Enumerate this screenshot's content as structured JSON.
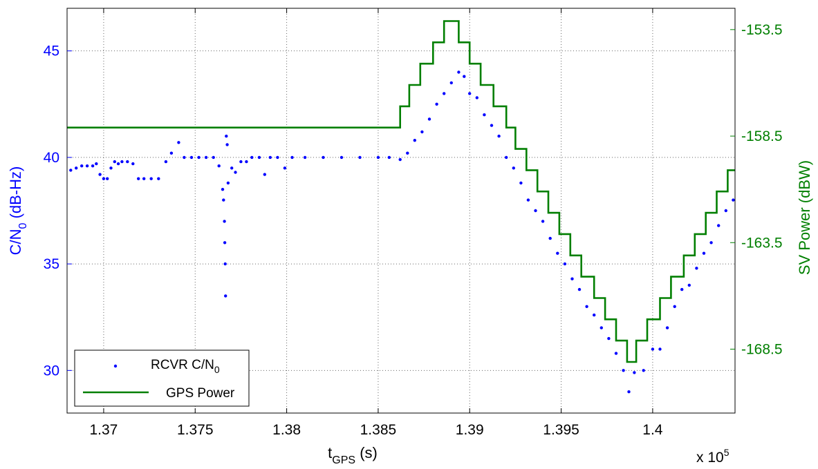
{
  "chart_data": {
    "type": "scatter",
    "xlabel": {
      "main": "t",
      "sub": "GPS",
      "rest": " (s)"
    },
    "x_multiplier": {
      "base": "x 10",
      "exp": "5"
    },
    "ylabel_left": {
      "main": "C/N",
      "sub": "0",
      "rest": " (dB-Hz)"
    },
    "ylabel_right": "SV Power (dBW)",
    "xlim": [
      136800,
      140450
    ],
    "ylim_left": [
      28,
      47
    ],
    "ylim_right": [
      -171.5,
      -152.5
    ],
    "x_ticks": [
      {
        "v": 137000,
        "label": "1.37"
      },
      {
        "v": 137500,
        "label": "1.375"
      },
      {
        "v": 138000,
        "label": "1.38"
      },
      {
        "v": 138500,
        "label": "1.385"
      },
      {
        "v": 139000,
        "label": "1.39"
      },
      {
        "v": 139500,
        "label": "1.395"
      },
      {
        "v": 140000,
        "label": "1.4"
      }
    ],
    "y_ticks_left": [
      {
        "v": 30,
        "label": "30"
      },
      {
        "v": 35,
        "label": "35"
      },
      {
        "v": 40,
        "label": "40"
      },
      {
        "v": 45,
        "label": "45"
      }
    ],
    "y_ticks_right": [
      {
        "v": -168.5,
        "label": "-168.5"
      },
      {
        "v": -163.5,
        "label": "-163.5"
      },
      {
        "v": -158.5,
        "label": "-158.5"
      },
      {
        "v": -153.5,
        "label": "-153.5"
      }
    ],
    "grid": true,
    "legend": {
      "placement": "bottom-left",
      "entries": [
        {
          "name": "RCVR C/N",
          "sub": "0",
          "marker": "dot",
          "color": "#0000ff"
        },
        {
          "name": "GPS Power",
          "sub": "",
          "marker": "line",
          "color": "#007f00"
        }
      ]
    },
    "colors": {
      "left_axis": "#0000ff",
      "right_axis": "#007f00",
      "frame": "#000000",
      "grid": "#000000"
    },
    "series": [
      {
        "name": "RCVR C/N0",
        "axis": "left",
        "style": "dots",
        "color": "#0000ff",
        "points": [
          [
            136820,
            39.4
          ],
          [
            136850,
            39.5
          ],
          [
            136880,
            39.6
          ],
          [
            136910,
            39.6
          ],
          [
            136940,
            39.6
          ],
          [
            136960,
            39.7
          ],
          [
            136980,
            39.2
          ],
          [
            137000,
            39.0
          ],
          [
            137020,
            39.0
          ],
          [
            137040,
            39.5
          ],
          [
            137060,
            39.8
          ],
          [
            137080,
            39.7
          ],
          [
            137100,
            39.8
          ],
          [
            137130,
            39.8
          ],
          [
            137160,
            39.7
          ],
          [
            137190,
            39.0
          ],
          [
            137220,
            39.0
          ],
          [
            137260,
            39.0
          ],
          [
            137300,
            39.0
          ],
          [
            137340,
            39.8
          ],
          [
            137370,
            40.2
          ],
          [
            137410,
            40.7
          ],
          [
            137440,
            40.0
          ],
          [
            137480,
            40.0
          ],
          [
            137520,
            40.0
          ],
          [
            137560,
            40.0
          ],
          [
            137600,
            40.0
          ],
          [
            137630,
            39.6
          ],
          [
            137650,
            38.5
          ],
          [
            137655,
            38.0
          ],
          [
            137660,
            37.0
          ],
          [
            137662,
            36.0
          ],
          [
            137664,
            35.0
          ],
          [
            137666,
            33.5
          ],
          [
            137670,
            41.0
          ],
          [
            137675,
            40.6
          ],
          [
            137680,
            38.8
          ],
          [
            137700,
            39.5
          ],
          [
            137720,
            39.3
          ],
          [
            137750,
            39.8
          ],
          [
            137780,
            39.8
          ],
          [
            137810,
            40.0
          ],
          [
            137850,
            40.0
          ],
          [
            137880,
            39.2
          ],
          [
            137910,
            40.0
          ],
          [
            137950,
            40.0
          ],
          [
            137990,
            39.5
          ],
          [
            138030,
            40.0
          ],
          [
            138100,
            40.0
          ],
          [
            138200,
            40.0
          ],
          [
            138300,
            40.0
          ],
          [
            138400,
            40.0
          ],
          [
            138500,
            40.0
          ],
          [
            138560,
            40.0
          ],
          [
            138620,
            39.9
          ],
          [
            138660,
            40.2
          ],
          [
            138700,
            40.8
          ],
          [
            138740,
            41.2
          ],
          [
            138780,
            41.8
          ],
          [
            138820,
            42.5
          ],
          [
            138860,
            43.0
          ],
          [
            138900,
            43.5
          ],
          [
            138940,
            44.0
          ],
          [
            138970,
            43.8
          ],
          [
            139000,
            43.0
          ],
          [
            139040,
            42.8
          ],
          [
            139080,
            42.0
          ],
          [
            139120,
            41.5
          ],
          [
            139160,
            41.0
          ],
          [
            139200,
            40.0
          ],
          [
            139240,
            39.5
          ],
          [
            139280,
            38.8
          ],
          [
            139320,
            38.0
          ],
          [
            139360,
            37.5
          ],
          [
            139400,
            37.0
          ],
          [
            139440,
            36.2
          ],
          [
            139480,
            35.5
          ],
          [
            139520,
            35.0
          ],
          [
            139560,
            34.3
          ],
          [
            139600,
            33.8
          ],
          [
            139640,
            33.0
          ],
          [
            139680,
            32.6
          ],
          [
            139720,
            32.0
          ],
          [
            139760,
            31.5
          ],
          [
            139800,
            30.8
          ],
          [
            139840,
            30.0
          ],
          [
            139870,
            29.0
          ],
          [
            139900,
            29.9
          ],
          [
            139950,
            30.0
          ],
          [
            140000,
            31.0
          ],
          [
            140040,
            31.0
          ],
          [
            140080,
            32.0
          ],
          [
            140120,
            33.0
          ],
          [
            140160,
            33.8
          ],
          [
            140200,
            34.0
          ],
          [
            140240,
            34.8
          ],
          [
            140280,
            35.5
          ],
          [
            140320,
            36.0
          ],
          [
            140360,
            36.8
          ],
          [
            140400,
            37.5
          ],
          [
            140440,
            38.0
          ]
        ]
      },
      {
        "name": "GPS Power",
        "axis": "right",
        "style": "step",
        "color": "#007f00",
        "points": [
          [
            136800,
            -158.1
          ],
          [
            138620,
            -158.1
          ],
          [
            138620,
            -157.1
          ],
          [
            138670,
            -157.1
          ],
          [
            138670,
            -156.1
          ],
          [
            138730,
            -156.1
          ],
          [
            138730,
            -155.1
          ],
          [
            138800,
            -155.1
          ],
          [
            138800,
            -154.1
          ],
          [
            138860,
            -154.1
          ],
          [
            138860,
            -153.1
          ],
          [
            138940,
            -153.1
          ],
          [
            138940,
            -154.1
          ],
          [
            139000,
            -154.1
          ],
          [
            139000,
            -155.1
          ],
          [
            139060,
            -155.1
          ],
          [
            139060,
            -156.1
          ],
          [
            139130,
            -156.1
          ],
          [
            139130,
            -157.1
          ],
          [
            139200,
            -157.1
          ],
          [
            139200,
            -158.1
          ],
          [
            139250,
            -158.1
          ],
          [
            139250,
            -159.1
          ],
          [
            139310,
            -159.1
          ],
          [
            139310,
            -160.1
          ],
          [
            139370,
            -160.1
          ],
          [
            139370,
            -161.1
          ],
          [
            139430,
            -161.1
          ],
          [
            139430,
            -162.1
          ],
          [
            139490,
            -162.1
          ],
          [
            139490,
            -163.1
          ],
          [
            139550,
            -163.1
          ],
          [
            139550,
            -164.1
          ],
          [
            139610,
            -164.1
          ],
          [
            139610,
            -165.1
          ],
          [
            139680,
            -165.1
          ],
          [
            139680,
            -166.1
          ],
          [
            139740,
            -166.1
          ],
          [
            139740,
            -167.1
          ],
          [
            139800,
            -167.1
          ],
          [
            139800,
            -168.1
          ],
          [
            139860,
            -168.1
          ],
          [
            139860,
            -169.1
          ],
          [
            139910,
            -169.1
          ],
          [
            139910,
            -168.1
          ],
          [
            139970,
            -168.1
          ],
          [
            139970,
            -167.1
          ],
          [
            140040,
            -167.1
          ],
          [
            140040,
            -166.1
          ],
          [
            140100,
            -166.1
          ],
          [
            140100,
            -165.1
          ],
          [
            140170,
            -165.1
          ],
          [
            140170,
            -164.1
          ],
          [
            140230,
            -164.1
          ],
          [
            140230,
            -163.1
          ],
          [
            140290,
            -163.1
          ],
          [
            140290,
            -162.1
          ],
          [
            140350,
            -162.1
          ],
          [
            140350,
            -161.1
          ],
          [
            140410,
            -161.1
          ],
          [
            140410,
            -160.1
          ],
          [
            140450,
            -160.1
          ]
        ]
      }
    ]
  }
}
